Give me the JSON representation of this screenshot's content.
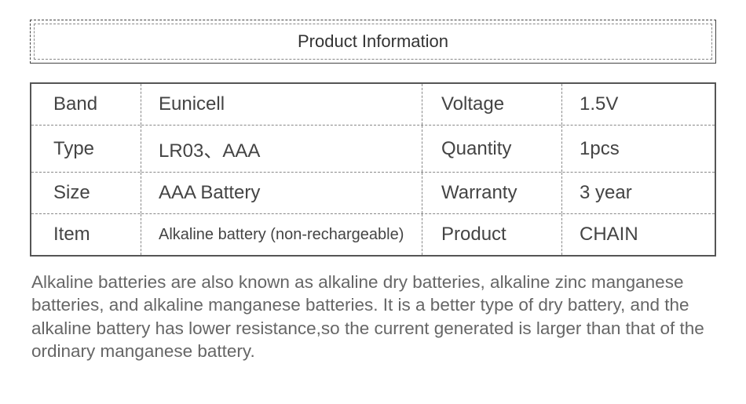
{
  "header": {
    "title": "Product Information"
  },
  "specs": {
    "rows": [
      {
        "label1": "Band",
        "value1": "Eunicell",
        "label2": "Voltage",
        "value2": "1.5V"
      },
      {
        "label1": "Type",
        "value1": "LR03、AAA",
        "label2": "Quantity",
        "value2": "1pcs"
      },
      {
        "label1": "Size",
        "value1": "AAA Battery",
        "label2": "Warranty",
        "value2": "3 year"
      },
      {
        "label1": "Item",
        "value1": "Alkaline battery (non-rechargeable)",
        "value1_small": true,
        "label2": "Product",
        "value2": "CHAIN"
      }
    ]
  },
  "description": {
    "text": "Alkaline batteries are also known as alkaline dry batteries, alkaline zinc manganese batteries, and alkaline manganese batteries. It is a better type of dry battery, and the alkaline battery has lower resistance,so the current generated is larger than that of the ordinary manganese battery."
  },
  "styling": {
    "background_color": "#ffffff",
    "border_color": "#555",
    "dash_color": "#888",
    "text_color": "#444",
    "description_color": "#666",
    "header_fontsize": 22,
    "cell_fontsize": 24,
    "small_cell_fontsize": 20,
    "description_fontsize": 22.5
  }
}
